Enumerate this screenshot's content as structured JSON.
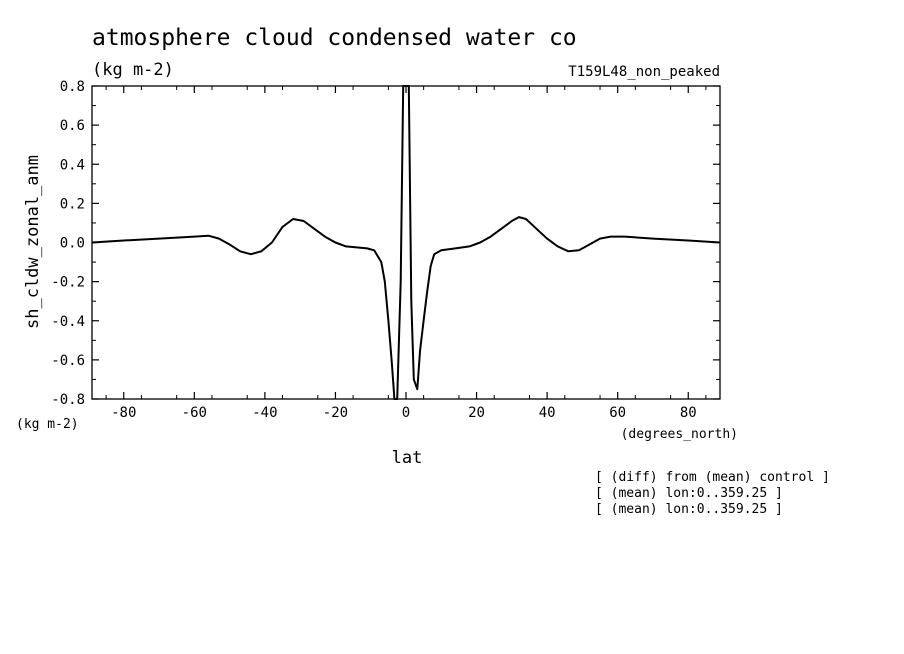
{
  "chart_data": {
    "type": "line",
    "title": "atmosphere cloud condensed water co",
    "units": "(kg m-2)",
    "run_label": "T159L48_non_peaked",
    "ylabel": "sh_cldw_zonal_anm",
    "ylabel_units": "(kg m-2)",
    "xlabel": "lat",
    "xlabel_units": "(degrees_north)",
    "xlim": [
      -89,
      89
    ],
    "ylim": [
      -0.8,
      0.8
    ],
    "x_ticks": [
      -80,
      -60,
      -40,
      -20,
      0,
      20,
      40,
      60,
      80
    ],
    "x_tick_labels": [
      "-80",
      "-60",
      "-40",
      "-20",
      "0",
      "20",
      "40",
      "60",
      "80"
    ],
    "y_ticks": [
      -0.8,
      -0.6,
      -0.4,
      -0.2,
      0.0,
      0.2,
      0.4,
      0.6,
      0.8
    ],
    "y_tick_labels": [
      "-0.8",
      "-0.6",
      "-0.4",
      "-0.2",
      "0.0",
      "0.2",
      "0.4",
      "0.6",
      "0.8"
    ],
    "grid": false,
    "series": [
      {
        "color": "#000000",
        "points": [
          [
            -89,
            0.0
          ],
          [
            -80,
            0.01
          ],
          [
            -70,
            0.02
          ],
          [
            -60,
            0.03
          ],
          [
            -56,
            0.035
          ],
          [
            -53,
            0.02
          ],
          [
            -50,
            -0.01
          ],
          [
            -47,
            -0.045
          ],
          [
            -44,
            -0.06
          ],
          [
            -41,
            -0.045
          ],
          [
            -38,
            0.0
          ],
          [
            -35,
            0.08
          ],
          [
            -32,
            0.12
          ],
          [
            -29,
            0.11
          ],
          [
            -26,
            0.07
          ],
          [
            -23,
            0.03
          ],
          [
            -20,
            0.0
          ],
          [
            -17,
            -0.02
          ],
          [
            -14,
            -0.025
          ],
          [
            -11,
            -0.03
          ],
          [
            -9,
            -0.04
          ],
          [
            -7,
            -0.1
          ],
          [
            -6,
            -0.2
          ],
          [
            -5,
            -0.4
          ],
          [
            -4,
            -0.62
          ],
          [
            -3.3,
            -0.8
          ],
          [
            -2.5,
            -0.8
          ],
          [
            -1.5,
            -0.2
          ],
          [
            -0.8,
            0.8
          ],
          [
            0.8,
            0.8
          ],
          [
            1.5,
            -0.3
          ],
          [
            2.2,
            -0.7
          ],
          [
            3.2,
            -0.75
          ],
          [
            4,
            -0.55
          ],
          [
            5,
            -0.4
          ],
          [
            6,
            -0.25
          ],
          [
            7,
            -0.12
          ],
          [
            8,
            -0.06
          ],
          [
            10,
            -0.04
          ],
          [
            14,
            -0.03
          ],
          [
            18,
            -0.02
          ],
          [
            21,
            0.0
          ],
          [
            24,
            0.03
          ],
          [
            27,
            0.07
          ],
          [
            30,
            0.11
          ],
          [
            32,
            0.13
          ],
          [
            34,
            0.12
          ],
          [
            37,
            0.07
          ],
          [
            40,
            0.02
          ],
          [
            43,
            -0.02
          ],
          [
            46,
            -0.045
          ],
          [
            49,
            -0.04
          ],
          [
            52,
            -0.01
          ],
          [
            55,
            0.02
          ],
          [
            58,
            0.03
          ],
          [
            62,
            0.03
          ],
          [
            70,
            0.02
          ],
          [
            80,
            0.01
          ],
          [
            89,
            0.0
          ]
        ]
      }
    ]
  },
  "annotations": [
    "[ (diff) from (mean) control ]",
    "[ (mean) lon:0..359.25 ]",
    "[ (mean) lon:0..359.25 ]"
  ]
}
